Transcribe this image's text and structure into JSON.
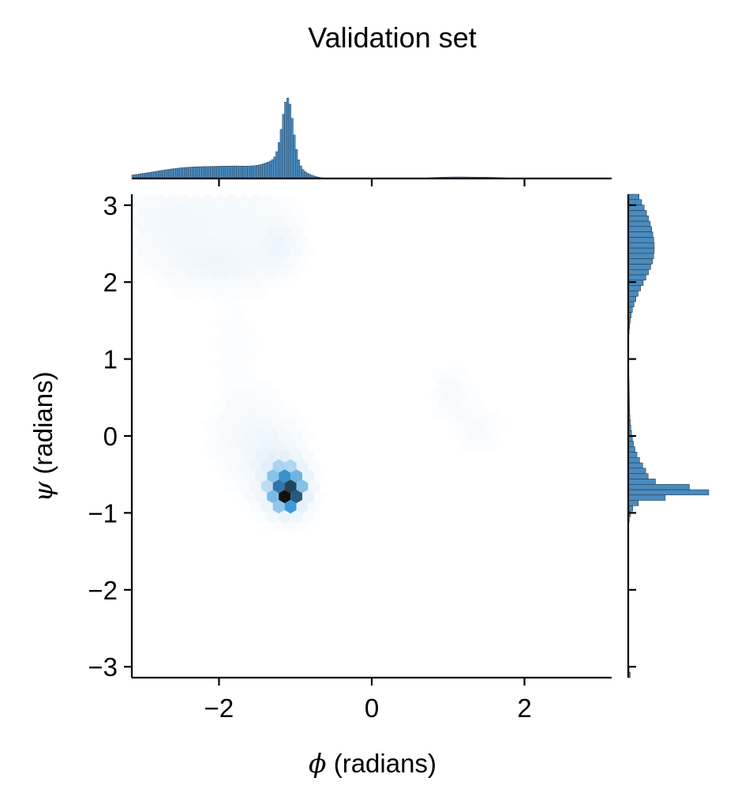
{
  "chart_data": {
    "type": "heatmap",
    "subtype": "hexbin joint plot with marginal histograms",
    "title": "Validation set",
    "x_label": {
      "symbol": "ϕ",
      "text": " (radians)"
    },
    "y_label": {
      "symbol": "ψ",
      "text": " (radians)"
    },
    "xlim": [
      -3.14159,
      3.14159
    ],
    "ylim": [
      -3.14159,
      3.14159
    ],
    "x_ticks": [
      {
        "value": -2,
        "label": "−2"
      },
      {
        "value": 0,
        "label": "0"
      },
      {
        "value": 2,
        "label": "2"
      }
    ],
    "y_ticks": [
      {
        "value": 3,
        "label": "3"
      },
      {
        "value": 2,
        "label": "2"
      },
      {
        "value": 1,
        "label": "1"
      },
      {
        "value": 0,
        "label": "0"
      },
      {
        "value": -1,
        "label": "−1"
      },
      {
        "value": -2,
        "label": "−2"
      },
      {
        "value": -3,
        "label": "−3"
      }
    ],
    "grid": false,
    "colors": {
      "hist": "#4a8bbf",
      "hist_edge": "#1f2a36",
      "density_dark": "#111111",
      "density_mid": "#3a9ad9",
      "density_light": "#e3f0fa"
    },
    "density_clusters": [
      {
        "phi": -1.1,
        "psi": -0.78,
        "sx": 0.07,
        "sy": 0.07,
        "weight": 1.0
      },
      {
        "phi": -1.1,
        "psi": -0.7,
        "sx": 0.15,
        "sy": 0.18,
        "weight": 0.55
      },
      {
        "phi": -1.25,
        "psi": -0.45,
        "sx": 0.22,
        "sy": 0.28,
        "weight": 0.12
      },
      {
        "phi": -1.6,
        "psi": 0.05,
        "sx": 0.3,
        "sy": 0.35,
        "weight": 0.045
      },
      {
        "phi": -2.0,
        "psi": 2.25,
        "sx": 0.45,
        "sy": 0.22,
        "weight": 0.07
      },
      {
        "phi": -1.2,
        "psi": 2.5,
        "sx": 0.16,
        "sy": 0.2,
        "weight": 0.07
      },
      {
        "phi": -2.6,
        "psi": 2.8,
        "sx": 0.4,
        "sy": 0.3,
        "weight": 0.05
      },
      {
        "phi": -1.7,
        "psi": 2.9,
        "sx": 0.35,
        "sy": 0.25,
        "weight": 0.04
      },
      {
        "phi": 1.05,
        "psi": 0.55,
        "sx": 0.15,
        "sy": 0.22,
        "weight": 0.03
      },
      {
        "phi": 1.4,
        "psi": 0.1,
        "sx": 0.2,
        "sy": 0.2,
        "weight": 0.02
      },
      {
        "phi": -1.8,
        "psi": 1.2,
        "sx": 0.2,
        "sy": 0.3,
        "weight": 0.015
      }
    ],
    "marginal_phi": {
      "components": [
        {
          "mu": -1.1,
          "sigma": 0.07,
          "amp": 1.0
        },
        {
          "mu": -1.15,
          "sigma": 0.2,
          "amp": 0.25
        },
        {
          "mu": -2.3,
          "sigma": 0.55,
          "amp": 0.18
        },
        {
          "mu": -1.6,
          "sigma": 0.3,
          "amp": 0.1
        },
        {
          "mu": 1.1,
          "sigma": 0.3,
          "amp": 0.025
        },
        {
          "mu": 1.6,
          "sigma": 0.2,
          "amp": 0.012
        }
      ]
    },
    "marginal_psi": {
      "components": [
        {
          "mu": -0.72,
          "sigma": 0.06,
          "amp": 1.0
        },
        {
          "mu": -0.6,
          "sigma": 0.2,
          "amp": 0.25
        },
        {
          "mu": -0.3,
          "sigma": 0.3,
          "amp": 0.08
        },
        {
          "mu": 2.4,
          "sigma": 0.4,
          "amp": 0.38
        },
        {
          "mu": 2.95,
          "sigma": 0.25,
          "amp": 0.1
        },
        {
          "mu": 0.5,
          "sigma": 0.3,
          "amp": 0.015
        },
        {
          "mu": -3.1,
          "sigma": 0.05,
          "amp": 0.03
        }
      ]
    }
  }
}
